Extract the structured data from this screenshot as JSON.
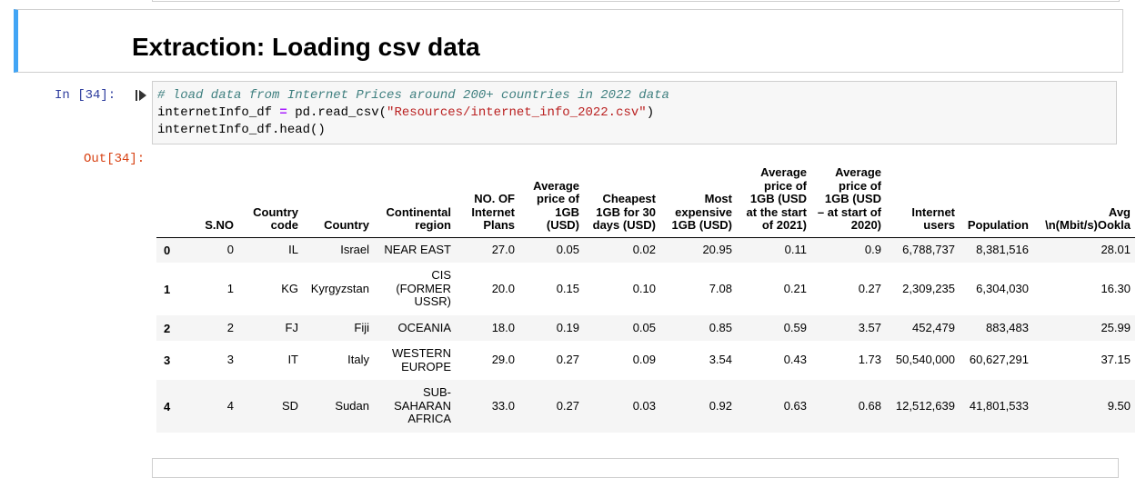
{
  "markdown": {
    "title": "Extraction: Loading csv data"
  },
  "code_cell": {
    "prompt": "In [34]:",
    "comment": "# load data from Internet Prices around 200+ countries in 2022 data",
    "line2_var": "internetInfo_df ",
    "line2_op": "=",
    "line2_call": " pd.read_csv(",
    "line2_str": "\"Resources/internet_info_2022.csv\"",
    "line2_end": ")",
    "line3": "internetInfo_df.head()"
  },
  "output": {
    "prompt": "Out[34]:",
    "columns": [
      "",
      "S.NO",
      "Country code",
      "Country",
      "Continental region",
      "NO. OF Internet Plans",
      "Average price of 1GB (USD)",
      "Cheapest 1GB for 30 days (USD)",
      "Most expensive 1GB (USD)",
      "Average price of 1GB (USD at the start of 2021)",
      "Average price of 1GB (USD – at start of 2020)",
      "Internet users",
      "Population",
      "Avg \\n(Mbit/s)Ookla"
    ],
    "rows": [
      [
        "0",
        "0",
        "IL",
        "Israel",
        "NEAR EAST",
        "27.0",
        "0.05",
        "0.02",
        "20.95",
        "0.11",
        "0.9",
        "6,788,737",
        "8,381,516",
        "28.01"
      ],
      [
        "1",
        "1",
        "KG",
        "Kyrgyzstan",
        "CIS (FORMER USSR)",
        "20.0",
        "0.15",
        "0.10",
        "7.08",
        "0.21",
        "0.27",
        "2,309,235",
        "6,304,030",
        "16.30"
      ],
      [
        "2",
        "2",
        "FJ",
        "Fiji",
        "OCEANIA",
        "18.0",
        "0.19",
        "0.05",
        "0.85",
        "0.59",
        "3.57",
        "452,479",
        "883,483",
        "25.99"
      ],
      [
        "3",
        "3",
        "IT",
        "Italy",
        "WESTERN EUROPE",
        "29.0",
        "0.27",
        "0.09",
        "3.54",
        "0.43",
        "1.73",
        "50,540,000",
        "60,627,291",
        "37.15"
      ],
      [
        "4",
        "4",
        "SD",
        "Sudan",
        "SUB-SAHARAN AFRICA",
        "33.0",
        "0.27",
        "0.03",
        "0.92",
        "0.63",
        "0.68",
        "12,512,639",
        "41,801,533",
        "9.50"
      ]
    ]
  },
  "colors": {
    "markdown_accent": "#42a5f5",
    "in_prompt": "#303f9f",
    "out_prompt": "#d84315",
    "code_bg": "#f7f7f7",
    "comment": "#408080",
    "string": "#ba2121",
    "operator": "#aa22ff"
  },
  "icons": {
    "run": "run-cell-icon"
  }
}
